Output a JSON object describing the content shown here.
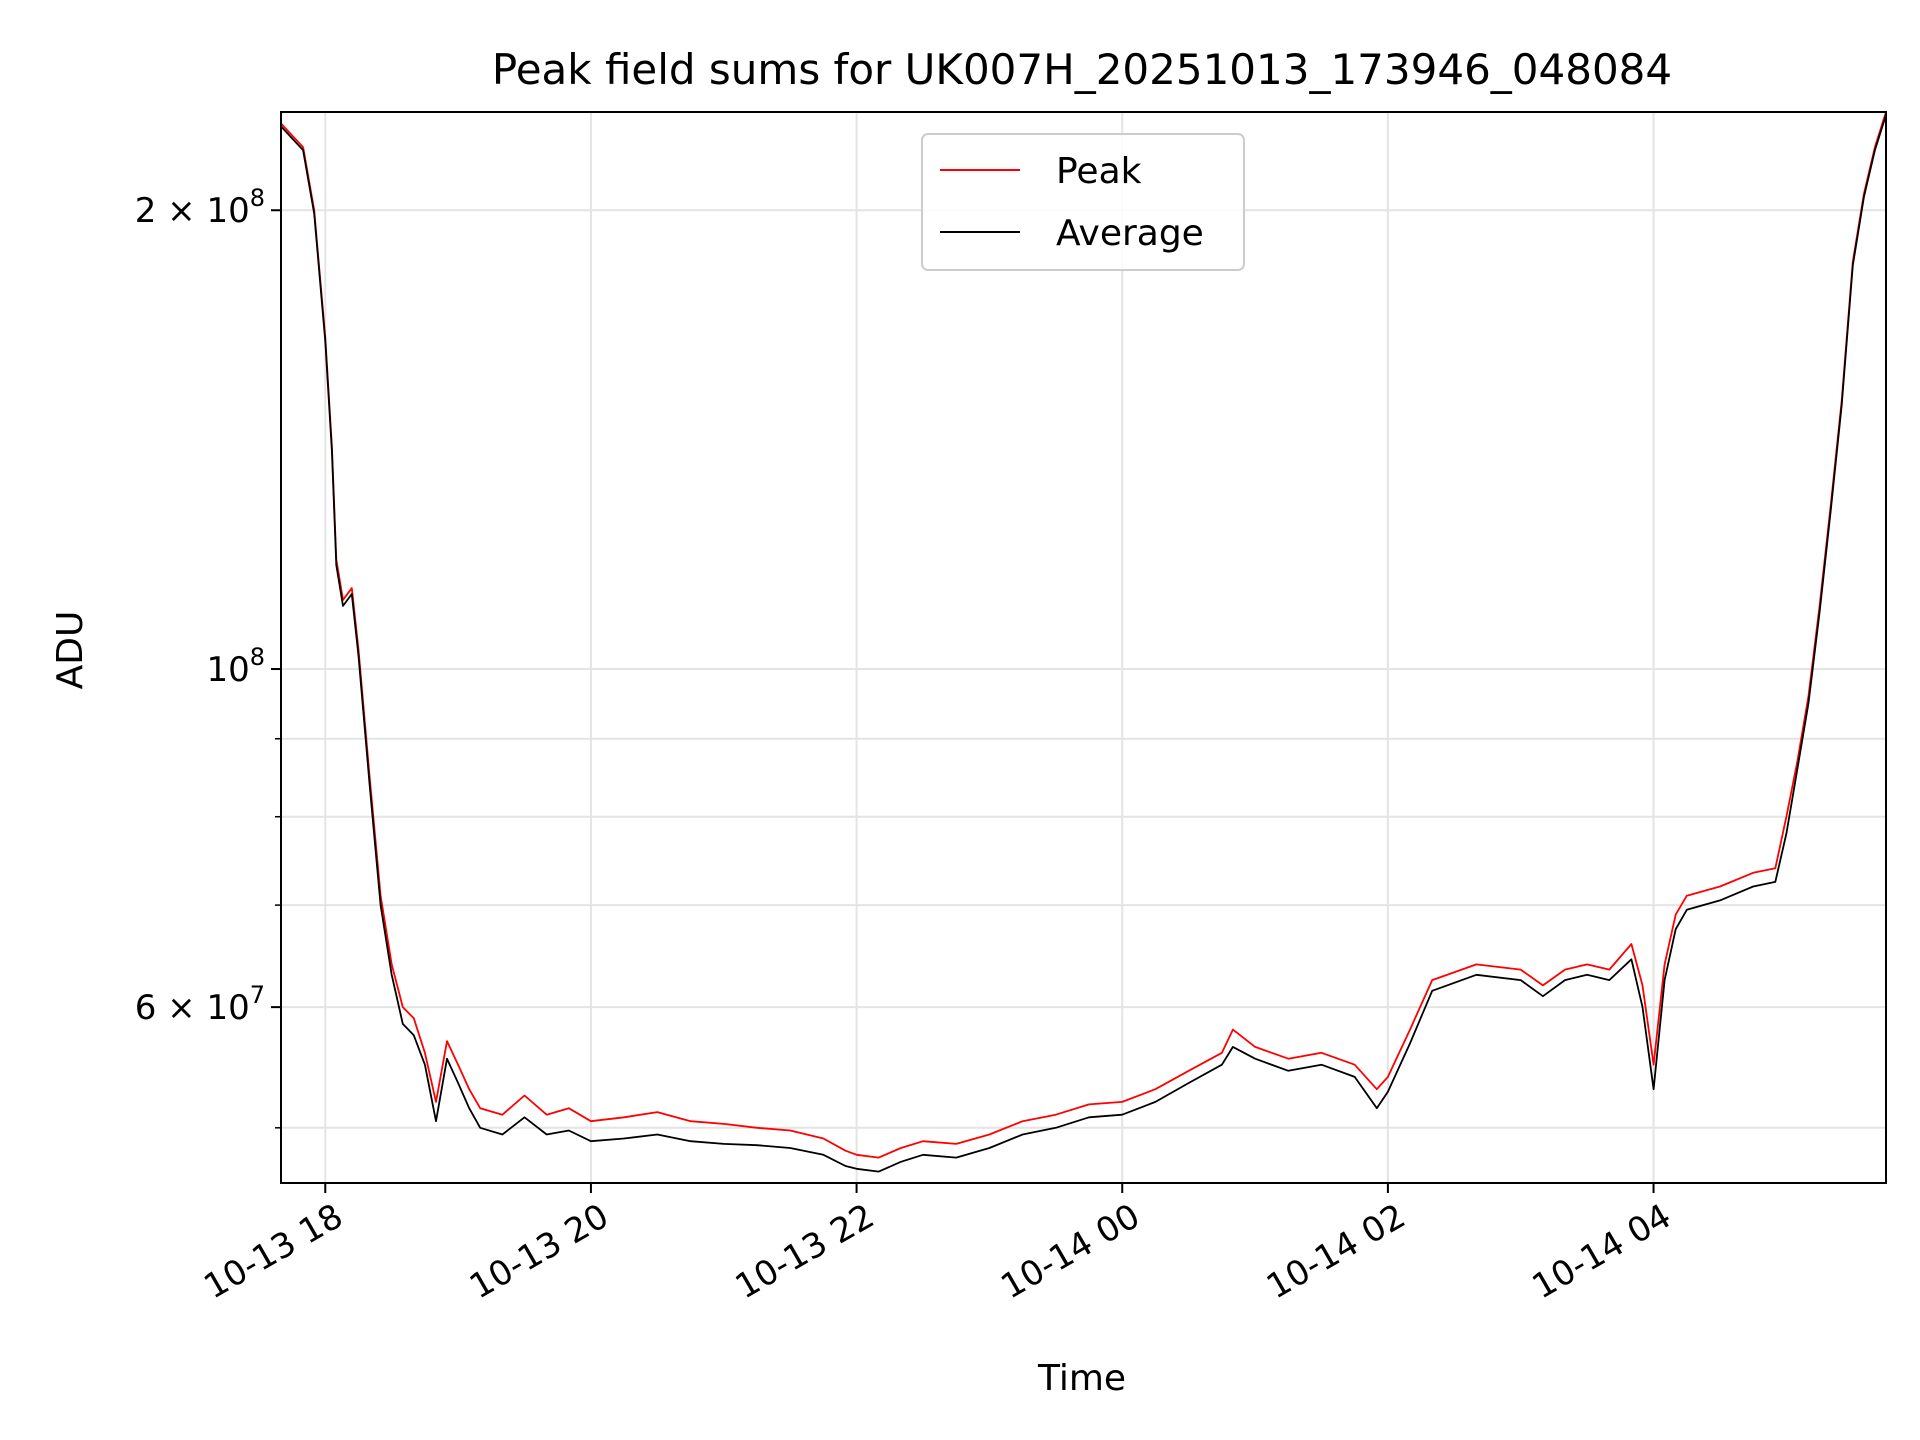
{
  "chart_data": {
    "type": "line",
    "title": "Peak field sums for UK007H_20251013_173946_048084",
    "xlabel": "Time",
    "ylabel": "ADU",
    "y_scale": "log",
    "grid": true,
    "legend_placement": "top-center",
    "xlim": [
      "2025-10-13 17:40",
      "2025-10-14 05:45"
    ],
    "ylim": [
      46000000,
      232000000
    ],
    "x_ticks": [
      {
        "value": "2025-10-13 18:00",
        "label": "10-13 18"
      },
      {
        "value": "2025-10-13 20:00",
        "label": "10-13 20"
      },
      {
        "value": "2025-10-13 22:00",
        "label": "10-13 22"
      },
      {
        "value": "2025-10-14 00:00",
        "label": "10-14 00"
      },
      {
        "value": "2025-10-14 02:00",
        "label": "10-14 02"
      },
      {
        "value": "2025-10-14 04:00",
        "label": "10-14 04"
      }
    ],
    "y_ticks": [
      {
        "value": 200000000,
        "base": "2 × 10",
        "exp": "8"
      },
      {
        "value": 100000000,
        "base": "10",
        "exp": "8"
      },
      {
        "value": 60000000,
        "base": "6 × 10",
        "exp": "7"
      }
    ],
    "y_minor_ticks": [
      50000000,
      70000000,
      80000000,
      90000000
    ],
    "series": [
      {
        "name": "Peak",
        "color": "#ff0000",
        "x": [
          "2025-10-13 17:40",
          "2025-10-13 17:50",
          "2025-10-13 17:55",
          "2025-10-13 18:00",
          "2025-10-13 18:03",
          "2025-10-13 18:05",
          "2025-10-13 18:08",
          "2025-10-13 18:12",
          "2025-10-13 18:15",
          "2025-10-13 18:20",
          "2025-10-13 18:25",
          "2025-10-13 18:30",
          "2025-10-13 18:35",
          "2025-10-13 18:40",
          "2025-10-13 18:45",
          "2025-10-13 18:50",
          "2025-10-13 18:55",
          "2025-10-13 19:00",
          "2025-10-13 19:05",
          "2025-10-13 19:10",
          "2025-10-13 19:20",
          "2025-10-13 19:30",
          "2025-10-13 19:40",
          "2025-10-13 19:50",
          "2025-10-13 20:00",
          "2025-10-13 20:15",
          "2025-10-13 20:30",
          "2025-10-13 20:45",
          "2025-10-13 21:00",
          "2025-10-13 21:15",
          "2025-10-13 21:30",
          "2025-10-13 21:45",
          "2025-10-13 21:55",
          "2025-10-13 22:00",
          "2025-10-13 22:10",
          "2025-10-13 22:20",
          "2025-10-13 22:30",
          "2025-10-13 22:45",
          "2025-10-13 23:00",
          "2025-10-13 23:15",
          "2025-10-13 23:30",
          "2025-10-13 23:45",
          "2025-10-14 00:00",
          "2025-10-14 00:15",
          "2025-10-14 00:30",
          "2025-10-14 00:45",
          "2025-10-14 00:50",
          "2025-10-14 01:00",
          "2025-10-14 01:15",
          "2025-10-14 01:30",
          "2025-10-14 01:45",
          "2025-10-14 01:55",
          "2025-10-14 02:00",
          "2025-10-14 02:10",
          "2025-10-14 02:20",
          "2025-10-14 02:40",
          "2025-10-14 03:00",
          "2025-10-14 03:10",
          "2025-10-14 03:20",
          "2025-10-14 03:30",
          "2025-10-14 03:40",
          "2025-10-14 03:50",
          "2025-10-14 03:55",
          "2025-10-14 04:00",
          "2025-10-14 04:05",
          "2025-10-14 04:10",
          "2025-10-14 04:15",
          "2025-10-14 04:30",
          "2025-10-14 04:45",
          "2025-10-14 04:55",
          "2025-10-14 05:00",
          "2025-10-14 05:05",
          "2025-10-14 05:10",
          "2025-10-14 05:15",
          "2025-10-14 05:20",
          "2025-10-14 05:25",
          "2025-10-14 05:30",
          "2025-10-14 05:35",
          "2025-10-14 05:40",
          "2025-10-14 05:45"
        ],
        "values": [
          228000000,
          220000000,
          200000000,
          165000000,
          140000000,
          118000000,
          111000000,
          113000000,
          103000000,
          85000000,
          71000000,
          64000000,
          60000000,
          59000000,
          56000000,
          52000000,
          57000000,
          55000000,
          53000000,
          51500000,
          51000000,
          52500000,
          51000000,
          51500000,
          50500000,
          50800000,
          51200000,
          50500000,
          50300000,
          50000000,
          49800000,
          49200000,
          48300000,
          48000000,
          47800000,
          48500000,
          49000000,
          48800000,
          49500000,
          50500000,
          51000000,
          51800000,
          52000000,
          53000000,
          54500000,
          56000000,
          58000000,
          56500000,
          55500000,
          56000000,
          55000000,
          53000000,
          54000000,
          58000000,
          62500000,
          64000000,
          63500000,
          62000000,
          63500000,
          64000000,
          63500000,
          66000000,
          62000000,
          55000000,
          64000000,
          69000000,
          71000000,
          72000000,
          73500000,
          74000000,
          80000000,
          87000000,
          96000000,
          110000000,
          128000000,
          150000000,
          185000000,
          205000000,
          220000000,
          232000000
        ]
      },
      {
        "name": "Average",
        "color": "#000000",
        "x": [
          "2025-10-13 17:40",
          "2025-10-13 17:50",
          "2025-10-13 17:55",
          "2025-10-13 18:00",
          "2025-10-13 18:03",
          "2025-10-13 18:05",
          "2025-10-13 18:08",
          "2025-10-13 18:12",
          "2025-10-13 18:15",
          "2025-10-13 18:20",
          "2025-10-13 18:25",
          "2025-10-13 18:30",
          "2025-10-13 18:35",
          "2025-10-13 18:40",
          "2025-10-13 18:45",
          "2025-10-13 18:50",
          "2025-10-13 18:55",
          "2025-10-13 19:00",
          "2025-10-13 19:05",
          "2025-10-13 19:10",
          "2025-10-13 19:20",
          "2025-10-13 19:30",
          "2025-10-13 19:40",
          "2025-10-13 19:50",
          "2025-10-13 20:00",
          "2025-10-13 20:15",
          "2025-10-13 20:30",
          "2025-10-13 20:45",
          "2025-10-13 21:00",
          "2025-10-13 21:15",
          "2025-10-13 21:30",
          "2025-10-13 21:45",
          "2025-10-13 21:55",
          "2025-10-13 22:00",
          "2025-10-13 22:10",
          "2025-10-13 22:20",
          "2025-10-13 22:30",
          "2025-10-13 22:45",
          "2025-10-13 23:00",
          "2025-10-13 23:15",
          "2025-10-13 23:30",
          "2025-10-13 23:45",
          "2025-10-14 00:00",
          "2025-10-14 00:15",
          "2025-10-14 00:30",
          "2025-10-14 00:45",
          "2025-10-14 00:50",
          "2025-10-14 01:00",
          "2025-10-14 01:15",
          "2025-10-14 01:30",
          "2025-10-14 01:45",
          "2025-10-14 01:55",
          "2025-10-14 02:00",
          "2025-10-14 02:10",
          "2025-10-14 02:20",
          "2025-10-14 02:40",
          "2025-10-14 03:00",
          "2025-10-14 03:10",
          "2025-10-14 03:20",
          "2025-10-14 03:30",
          "2025-10-14 03:40",
          "2025-10-14 03:50",
          "2025-10-14 03:55",
          "2025-10-14 04:00",
          "2025-10-14 04:05",
          "2025-10-14 04:10",
          "2025-10-14 04:15",
          "2025-10-14 04:30",
          "2025-10-14 04:45",
          "2025-10-14 04:55",
          "2025-10-14 05:00",
          "2025-10-14 05:05",
          "2025-10-14 05:10",
          "2025-10-14 05:15",
          "2025-10-14 05:20",
          "2025-10-14 05:25",
          "2025-10-14 05:30",
          "2025-10-14 05:35",
          "2025-10-14 05:40",
          "2025-10-14 05:45"
        ],
        "values": [
          227000000,
          219000000,
          199000000,
          164000000,
          139000000,
          117000000,
          110000000,
          112000000,
          102000000,
          84000000,
          70000000,
          63000000,
          58500000,
          57500000,
          55000000,
          50500000,
          55500000,
          53500000,
          51500000,
          50000000,
          49500000,
          50800000,
          49500000,
          49800000,
          49000000,
          49200000,
          49500000,
          49000000,
          48800000,
          48700000,
          48500000,
          48000000,
          47200000,
          47000000,
          46800000,
          47500000,
          48000000,
          47800000,
          48500000,
          49500000,
          50000000,
          50800000,
          51000000,
          52000000,
          53500000,
          55000000,
          56500000,
          55500000,
          54500000,
          55000000,
          54000000,
          51500000,
          52800000,
          56800000,
          61500000,
          63000000,
          62500000,
          61000000,
          62500000,
          63000000,
          62500000,
          64500000,
          60000000,
          53000000,
          62500000,
          67500000,
          69500000,
          70500000,
          72000000,
          72500000,
          78000000,
          86000000,
          95000000,
          109000000,
          127000000,
          149000000,
          184000000,
          204000000,
          219000000,
          231000000
        ]
      }
    ]
  }
}
